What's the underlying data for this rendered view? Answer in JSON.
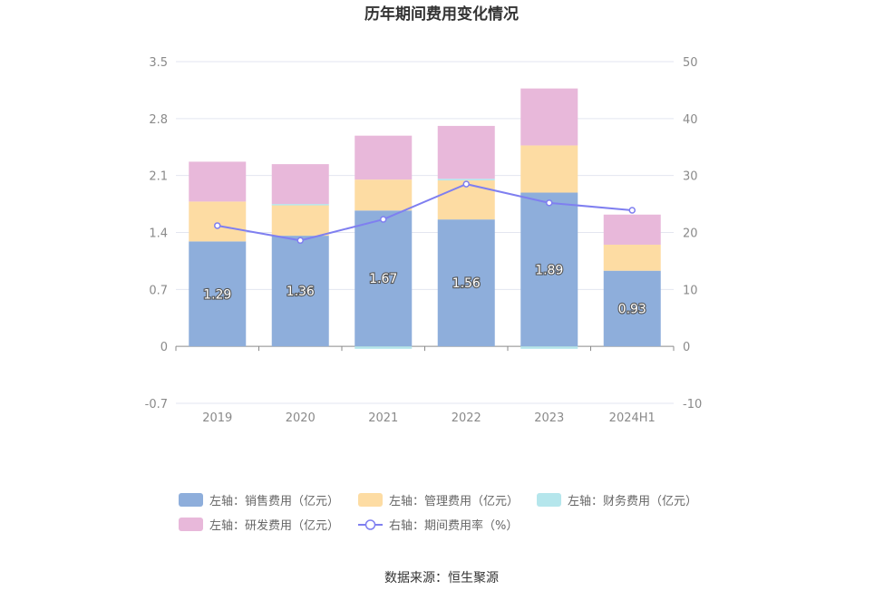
{
  "source_text": "数据来源：恒生聚源",
  "chart_data": {
    "type": "bar",
    "title": "历年期间费用变化情况",
    "categories": [
      "2019",
      "2020",
      "2021",
      "2022",
      "2023",
      "2024H1"
    ],
    "left_axis": {
      "min": -0.7,
      "max": 3.5,
      "ticks": [
        "3.5",
        "2.8",
        "2.1",
        "1.4",
        "0.7",
        "0",
        "-0.7"
      ]
    },
    "right_axis": {
      "min": -10,
      "max": 50,
      "ticks": [
        "50",
        "40",
        "30",
        "20",
        "10",
        "0",
        "-10"
      ]
    },
    "bar_series": [
      {
        "name": "左轴：销售费用（亿元）",
        "color": "#8eaedb",
        "values": [
          1.29,
          1.36,
          1.67,
          1.56,
          1.89,
          0.93
        ],
        "show_labels": true
      },
      {
        "name": "左轴：管理费用（亿元）",
        "color": "#fddca3",
        "values": [
          0.49,
          0.38,
          0.38,
          0.48,
          0.58,
          0.32
        ],
        "show_labels": false
      },
      {
        "name": "左轴：财务费用（亿元）",
        "color": "#b5e6ec",
        "values": [
          0.0,
          0.01,
          -0.03,
          0.02,
          -0.03,
          0.0
        ],
        "show_labels": false
      },
      {
        "name": "左轴：研发费用（亿元）",
        "color": "#e8b8da",
        "values": [
          0.49,
          0.49,
          0.54,
          0.65,
          0.7,
          0.37
        ],
        "show_labels": false
      }
    ],
    "line_series": {
      "name": "右轴：期间费用率（%）",
      "color": "#7f7ff0",
      "values": [
        21.2,
        18.6,
        22.3,
        28.5,
        25.2,
        23.9
      ]
    },
    "legend_position": "bottom",
    "grid": true
  }
}
